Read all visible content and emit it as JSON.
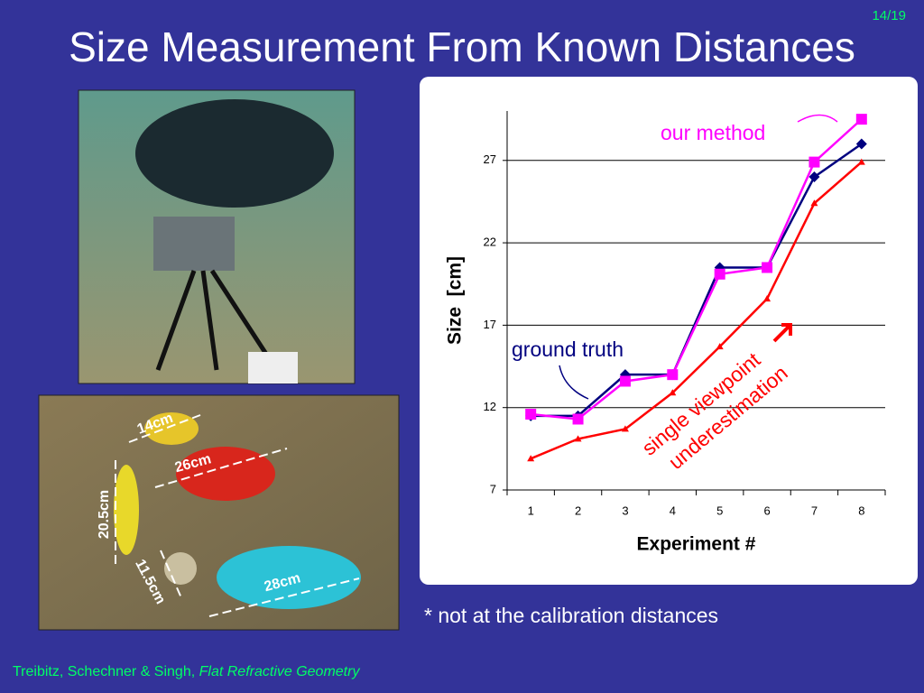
{
  "slide": {
    "page_number": "14/19",
    "title": "Size Measurement From Known Distances",
    "photo_labels": [
      "14cm",
      "26cm",
      "20.5cm",
      "11.5cm",
      "28cm"
    ],
    "note": "* not at the calibration distances",
    "footer_authors": "Treibitz, Schechner & Singh, ",
    "footer_paper": "Flat Refractive Geometry"
  },
  "chart_data": {
    "type": "line",
    "x_label": "Experiment #",
    "y_label": "Size  [cm]",
    "categories": [
      "1",
      "2",
      "3",
      "4",
      "5",
      "6",
      "7",
      "8"
    ],
    "series": [
      {
        "color": "#000080",
        "marker": "diamond",
        "values": [
          11.5,
          11.5,
          14,
          14,
          20.5,
          20.5,
          26,
          28
        ]
      },
      {
        "color": "#ff00ff",
        "marker": "square",
        "values": [
          11.6,
          11.3,
          13.6,
          14,
          20.1,
          20.5,
          26.9,
          29.5
        ]
      },
      {
        "color": "#ff0000",
        "marker": "triangle",
        "values": [
          8.9,
          10.1,
          10.7,
          12.9,
          15.7,
          18.6,
          24.4,
          26.9
        ]
      }
    ],
    "annotations": [
      "our method",
      "ground truth",
      "single viewpoint",
      "underestimation"
    ],
    "ylim": [
      7,
      30
    ],
    "yticks": [
      7,
      12,
      17,
      22,
      27
    ],
    "grid": true
  }
}
